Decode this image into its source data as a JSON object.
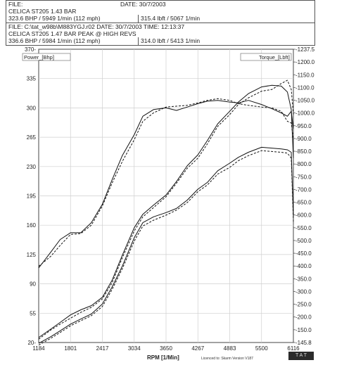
{
  "header1": {
    "row1_left": "FILE:",
    "row1_right": "DATE: 30/7/2003",
    "row2_left": "CELICA ST205 1.43 BAR",
    "row3_left": "323.6 BHP / 5949 1/min (112 mph)",
    "row3_right": "315.4 lbft / 5067 1/min"
  },
  "header2": {
    "row1": "FILE: C:\\tat_w98b\\M883YGJ.r02  DATE: 30/7/2003  TIME: 12:13:37",
    "row2": "CELICA ST205 1.47 BAR  PEAK @ HIGH REVS",
    "row3_left": "336.6 BHP / 5984 1/min (112 mph)",
    "row3_right": "314.0 lbft / 5413 1/min"
  },
  "footer": {
    "licence": "Licenced to: Skarm  Version V187",
    "badge": "T A T"
  },
  "chart_data": {
    "type": "line",
    "xlabel": "RPM  [1/Min]",
    "x_ticks": [
      "1184",
      "1801",
      "2417",
      "3034",
      "3650",
      "4267",
      "4883",
      "5500",
      "6116"
    ],
    "xlim": [
      1184,
      6116
    ],
    "left_axis": {
      "label": "Power_[Bhp]",
      "ticks": [
        "20-",
        "55",
        "90",
        "125",
        "160",
        "195",
        "230",
        "265",
        "300",
        "335",
        "370-"
      ],
      "ylim": [
        20,
        370
      ]
    },
    "right_axis": {
      "label": "Torque_[Lbft]",
      "ticks": [
        "-145.8",
        "-150.0",
        "-200.0",
        "-250.0",
        "-300.0",
        "-350.0",
        "-400.0",
        "-450.0",
        "-500.0",
        "-550.0",
        "-600.0",
        "-650.0",
        "-700.0",
        "-750.0",
        "-800.0",
        "-850.0",
        "-900.0",
        "-950.0",
        "-1000.0",
        "-1050.0",
        "-1100.0",
        "-1150.0",
        "-1200.0",
        "-1237.5"
      ],
      "ylim": [
        145.8,
        1237.5
      ]
    },
    "grid": true,
    "series": [
      {
        "style": "solid",
        "axis": "left",
        "role": "torque",
        "x": [
          1184,
          1420,
          1601,
          1801,
          2000,
          2203,
          2417,
          2603,
          2802,
          3034,
          3201,
          3408,
          3650,
          3851,
          4062,
          4267,
          4450,
          4651,
          4883,
          5050,
          5245,
          5500,
          5700,
          5880,
          6000,
          6075,
          6116
        ],
        "y": [
          109,
          128,
          143,
          151,
          151,
          163,
          185,
          214,
          243,
          268,
          290,
          298,
          300,
          297,
          301,
          305,
          308,
          309,
          307,
          306,
          309,
          304,
          299,
          294,
          290,
          296,
          275
        ]
      },
      {
        "style": "dashed",
        "axis": "left",
        "role": "torque",
        "x": [
          1184,
          1420,
          1601,
          1801,
          2000,
          2203,
          2417,
          2603,
          2802,
          3034,
          3201,
          3408,
          3650,
          3851,
          4062,
          4267,
          4450,
          4651,
          4883,
          5050,
          5245,
          5500,
          5700,
          5880,
          6000,
          6075,
          6116
        ],
        "y": [
          111,
          123,
          136,
          149,
          150,
          160,
          183,
          210,
          236,
          262,
          284,
          294,
          301,
          302,
          303,
          306,
          309,
          311,
          309,
          305,
          303,
          301,
          300,
          296,
          284,
          282,
          262
        ]
      },
      {
        "style": "solid",
        "axis": "left",
        "role": "power",
        "x": [
          1184,
          1420,
          1601,
          1801,
          2000,
          2203,
          2417,
          2603,
          2802,
          3034,
          3201,
          3408,
          3650,
          3851,
          4062,
          4267,
          4450,
          4651,
          4883,
          5050,
          5245,
          5500,
          5700,
          5880,
          6000,
          6075,
          6116
        ],
        "y": [
          26,
          36,
          44,
          53,
          59,
          64,
          74,
          94,
          124,
          157,
          173,
          184,
          196,
          212,
          231,
          244,
          261,
          281,
          296,
          307,
          317,
          325,
          327,
          326,
          319,
          298,
          240
        ]
      },
      {
        "style": "dashed",
        "axis": "left",
        "role": "power",
        "x": [
          1184,
          1420,
          1601,
          1801,
          2000,
          2203,
          2417,
          2603,
          2802,
          3034,
          3201,
          3408,
          3650,
          3851,
          4062,
          4267,
          4450,
          4651,
          4883,
          5050,
          5245,
          5500,
          5700,
          5880,
          6000,
          6075,
          6116
        ],
        "y": [
          24,
          35,
          42,
          49,
          56,
          62,
          72,
          91,
          121,
          153,
          170,
          181,
          194,
          210,
          228,
          240,
          257,
          278,
          292,
          304,
          312,
          320,
          322,
          329,
          333,
          322,
          292
        ]
      },
      {
        "style": "solid",
        "axis": "left",
        "role": "power-2",
        "x": [
          1184,
          1420,
          1601,
          1801,
          2000,
          2203,
          2417,
          2603,
          2802,
          3034,
          3201,
          3408,
          3650,
          3851,
          4062,
          4267,
          4450,
          4651,
          4883,
          5050,
          5245,
          5500,
          5700,
          5880,
          6000,
          6075,
          6116
        ],
        "y": [
          19,
          27,
          34,
          42,
          48,
          54,
          66,
          86,
          111,
          145,
          163,
          170,
          175,
          180,
          190,
          203,
          211,
          225,
          234,
          241,
          247,
          253,
          252,
          251,
          250,
          247,
          170
        ]
      },
      {
        "style": "dashed",
        "axis": "left",
        "role": "power-2",
        "x": [
          1184,
          1420,
          1601,
          1801,
          2000,
          2203,
          2417,
          2603,
          2802,
          3034,
          3201,
          3408,
          3650,
          3851,
          4062,
          4267,
          4450,
          4651,
          4883,
          5050,
          5245,
          5500,
          5700,
          5880,
          6000,
          6075,
          6116
        ],
        "y": [
          17,
          25,
          32,
          40,
          46,
          52,
          63,
          83,
          108,
          141,
          159,
          166,
          172,
          178,
          187,
          200,
          208,
          221,
          229,
          237,
          243,
          249,
          248,
          247,
          246,
          240,
          164
        ]
      }
    ]
  }
}
